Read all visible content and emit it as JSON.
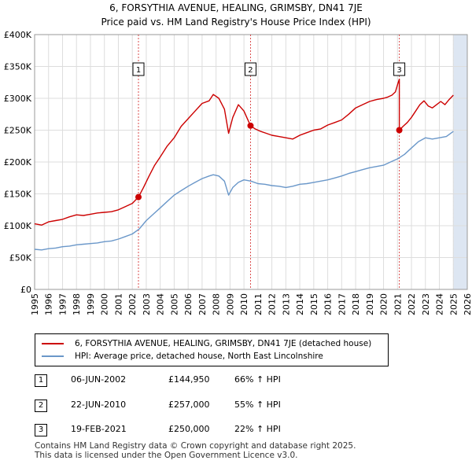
{
  "title_line1": "6, FORSYTHIA AVENUE, HEALING, GRIMSBY, DN41 7JE",
  "title_line2": "Price paid vs. HM Land Registry's House Price Index (HPI)",
  "colors": {
    "property": "#cc0000",
    "hpi": "#6a97c9",
    "grid": "#dddddd",
    "shade": "#dde6f2",
    "dash": "#cc0000"
  },
  "chart_data": {
    "type": "line",
    "xlim": [
      1995,
      2026
    ],
    "ylim": [
      0,
      400000
    ],
    "y_ticks": [
      0,
      50000,
      100000,
      150000,
      200000,
      250000,
      300000,
      350000,
      400000
    ],
    "y_tick_labels": [
      "£0",
      "£50K",
      "£100K",
      "£150K",
      "£200K",
      "£250K",
      "£300K",
      "£350K",
      "£400K"
    ],
    "x_ticks": [
      1995,
      1996,
      1997,
      1998,
      1999,
      2000,
      2001,
      2002,
      2003,
      2004,
      2005,
      2006,
      2007,
      2008,
      2009,
      2010,
      2011,
      2012,
      2013,
      2014,
      2015,
      2016,
      2017,
      2018,
      2019,
      2020,
      2021,
      2022,
      2023,
      2024,
      2025,
      2026
    ],
    "x_tick_labels": [
      "1995",
      "1996",
      "1997",
      "1998",
      "1999",
      "2000",
      "2001",
      "2002",
      "2003",
      "2004",
      "2005",
      "2006",
      "2007",
      "2008",
      "2009",
      "2010",
      "2011",
      "2012",
      "2013",
      "2014",
      "2015",
      "2016",
      "2017",
      "2018",
      "2019",
      "2020",
      "2021",
      "2022",
      "2023",
      "2024",
      "2025",
      "2026"
    ],
    "forecast_start": 2025.0,
    "series": [
      {
        "name": "6, FORSYTHIA AVENUE, HEALING, GRIMSBY, DN41 7JE (detached house)",
        "color": "#cc0000",
        "x": [
          1995.0,
          1995.5,
          1996.0,
          1996.5,
          1997.0,
          1997.5,
          1998.0,
          1998.5,
          1999.0,
          1999.5,
          2000.0,
          2000.5,
          2001.0,
          2001.5,
          2002.0,
          2002.44,
          2002.8,
          2003.2,
          2003.6,
          2004.0,
          2004.5,
          2005.0,
          2005.5,
          2006.0,
          2006.5,
          2007.0,
          2007.5,
          2007.8,
          2008.2,
          2008.6,
          2008.9,
          2009.2,
          2009.6,
          2010.0,
          2010.3,
          2010.47,
          2010.8,
          2011.2,
          2011.6,
          2012.0,
          2012.5,
          2013.0,
          2013.5,
          2014.0,
          2014.5,
          2015.0,
          2015.5,
          2016.0,
          2016.5,
          2017.0,
          2017.5,
          2018.0,
          2018.5,
          2019.0,
          2019.5,
          2020.0,
          2020.3,
          2020.6,
          2020.85,
          2021.05,
          2021.13,
          2021.13,
          2021.4,
          2021.7,
          2022.0,
          2022.3,
          2022.6,
          2022.9,
          2023.2,
          2023.5,
          2023.8,
          2024.1,
          2024.4,
          2024.7,
          2025.0
        ],
        "values": [
          103000,
          101000,
          106000,
          108000,
          110000,
          114000,
          117000,
          116000,
          118000,
          120000,
          121000,
          122000,
          125000,
          130000,
          135000,
          144950,
          160000,
          178000,
          195000,
          208000,
          225000,
          238000,
          256000,
          268000,
          280000,
          292000,
          296000,
          306000,
          300000,
          283000,
          245000,
          270000,
          290000,
          280000,
          265000,
          257000,
          252000,
          248000,
          245000,
          242000,
          240000,
          238000,
          236000,
          242000,
          246000,
          250000,
          252000,
          258000,
          262000,
          266000,
          275000,
          285000,
          290000,
          295000,
          298000,
          300000,
          302000,
          305000,
          310000,
          325000,
          330000,
          250000,
          256000,
          262000,
          270000,
          280000,
          290000,
          296000,
          288000,
          285000,
          290000,
          295000,
          290000,
          298000,
          305000
        ]
      },
      {
        "name": "HPI: Average price, detached house, North East Lincolnshire",
        "color": "#6a97c9",
        "x": [
          1995.0,
          1995.5,
          1996.0,
          1996.5,
          1997.0,
          1997.5,
          1998.0,
          1998.5,
          1999.0,
          1999.5,
          2000.0,
          2000.5,
          2001.0,
          2001.5,
          2002.0,
          2002.5,
          2003.0,
          2003.5,
          2004.0,
          2004.5,
          2005.0,
          2005.5,
          2006.0,
          2006.5,
          2007.0,
          2007.5,
          2007.8,
          2008.2,
          2008.6,
          2008.9,
          2009.2,
          2009.6,
          2010.0,
          2010.5,
          2011.0,
          2011.5,
          2012.0,
          2012.5,
          2013.0,
          2013.5,
          2014.0,
          2014.5,
          2015.0,
          2015.5,
          2016.0,
          2016.5,
          2017.0,
          2017.5,
          2018.0,
          2018.5,
          2019.0,
          2019.5,
          2020.0,
          2020.5,
          2021.0,
          2021.5,
          2022.0,
          2022.5,
          2023.0,
          2023.5,
          2024.0,
          2024.5,
          2025.0
        ],
        "values": [
          63000,
          62000,
          64000,
          65000,
          67000,
          68000,
          70000,
          71000,
          72000,
          73000,
          75000,
          76000,
          79000,
          83000,
          87000,
          95000,
          108000,
          118000,
          128000,
          138000,
          148000,
          155000,
          162000,
          168000,
          174000,
          178000,
          180000,
          178000,
          170000,
          148000,
          160000,
          168000,
          172000,
          170000,
          166000,
          165000,
          163000,
          162000,
          160000,
          162000,
          165000,
          166000,
          168000,
          170000,
          172000,
          175000,
          178000,
          182000,
          185000,
          188000,
          191000,
          193000,
          195000,
          200000,
          205000,
          212000,
          222000,
          232000,
          238000,
          236000,
          238000,
          240000,
          248000
        ]
      }
    ],
    "sales": [
      {
        "id": "1",
        "x": 2002.44,
        "value": 144950
      },
      {
        "id": "2",
        "x": 2010.47,
        "value": 257000
      },
      {
        "id": "3",
        "x": 2021.13,
        "value": 250000
      }
    ]
  },
  "legend": {
    "property": "6, FORSYTHIA AVENUE, HEALING, GRIMSBY, DN41 7JE (detached house)",
    "hpi": "HPI: Average price, detached house, North East Lincolnshire"
  },
  "sales_table": [
    {
      "num": "1",
      "date": "06-JUN-2002",
      "price": "£144,950",
      "change": "66% ↑ HPI"
    },
    {
      "num": "2",
      "date": "22-JUN-2010",
      "price": "£257,000",
      "change": "55% ↑ HPI"
    },
    {
      "num": "3",
      "date": "19-FEB-2021",
      "price": "£250,000",
      "change": "22% ↑ HPI"
    }
  ],
  "footer_line1": "Contains HM Land Registry data © Crown copyright and database right 2025.",
  "footer_line2": "This data is licensed under the Open Government Licence v3.0."
}
